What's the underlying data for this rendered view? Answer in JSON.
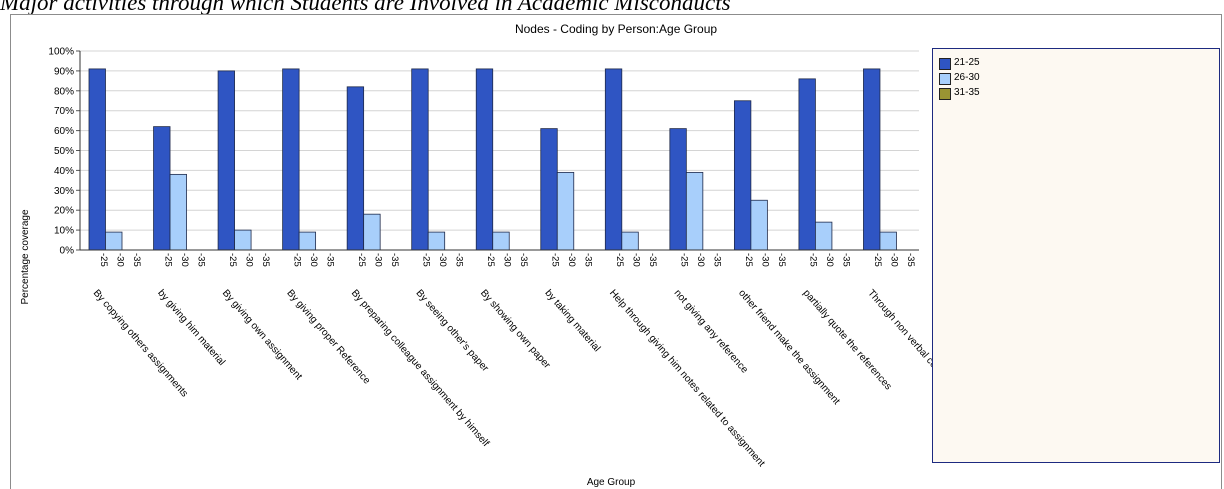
{
  "page": {
    "heading": "Major activities through which Students are Involved in Academic Misconducts"
  },
  "chart_data": {
    "type": "bar",
    "title": "Nodes - Coding by Person:Age Group",
    "xlabel": "Age Group",
    "ylabel": "Percentage coverage",
    "ylim": [
      0,
      100
    ],
    "yticks": [
      "0%",
      "10%",
      "20%",
      "30%",
      "40%",
      "50%",
      "60%",
      "70%",
      "80%",
      "90%",
      "100%"
    ],
    "grid": true,
    "legend_position": "right",
    "subcategory_labels": [
      "-25",
      "-30",
      "-35"
    ],
    "categories": [
      "By copying others assignments",
      "by giving him material",
      "By giving own assignment",
      "By giving proper Reference",
      "By preparing colleague assignment by himself",
      "By seeing other's paper",
      "By showing own paper",
      "by taking material",
      "Help through giving him notes related to assignment",
      "not giving any reference",
      "other friend make the assignment",
      "partially quote the references",
      "Through non verbal communication"
    ],
    "series": [
      {
        "name": "21-25",
        "color": "#2f55c3",
        "values": [
          91,
          62,
          90,
          91,
          82,
          91,
          91,
          61,
          91,
          61,
          75,
          86,
          91
        ]
      },
      {
        "name": "26-30",
        "color": "#a8cffb",
        "values": [
          9,
          38,
          10,
          9,
          18,
          9,
          9,
          39,
          9,
          39,
          25,
          14,
          9
        ]
      },
      {
        "name": "31-35",
        "color": "#9a9433",
        "values": [
          0,
          0,
          0,
          0,
          0,
          0,
          0,
          0,
          0,
          0,
          0,
          0,
          0
        ]
      }
    ]
  }
}
